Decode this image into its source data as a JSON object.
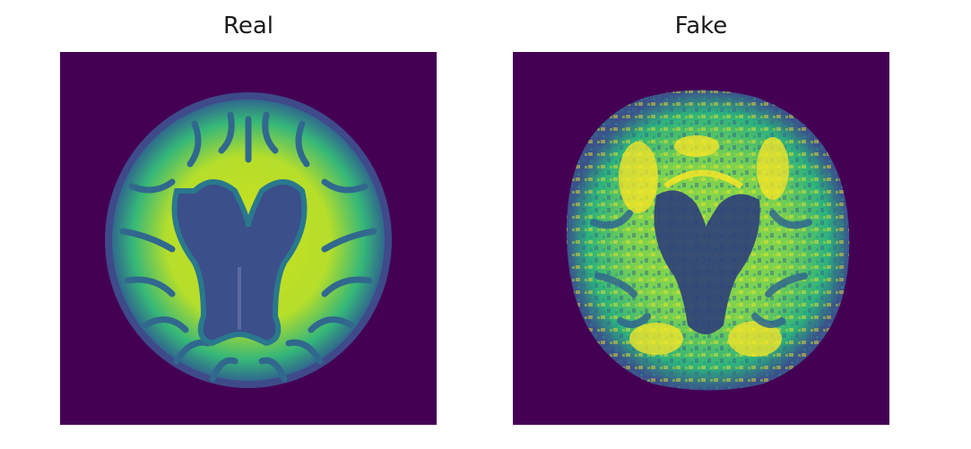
{
  "panels": [
    {
      "title": "Real"
    },
    {
      "title": "Fake"
    }
  ],
  "colors": {
    "background_purple": "#440154",
    "dark_blue": "#3b528b",
    "teal": "#21918c",
    "green": "#5ec962",
    "yellow": "#fde725"
  }
}
